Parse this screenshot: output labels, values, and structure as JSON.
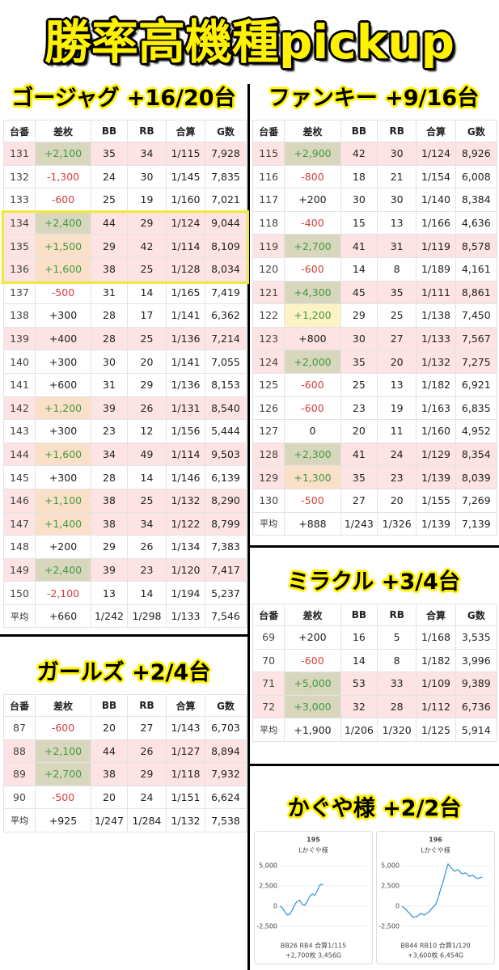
{
  "title": "勝率高機種pickup",
  "tables": [
    {
      "heading": "ゴージャグ +16/20台",
      "columns": [
        "台番",
        "差枚",
        "BB",
        "RB",
        "合算",
        "G数"
      ],
      "rows": [
        [
          "131",
          "+2,100",
          "35",
          "34",
          "1/115",
          "7,928"
        ],
        [
          "132",
          "-1,300",
          "24",
          "30",
          "1/145",
          "7,835"
        ],
        [
          "133",
          "-600",
          "25",
          "19",
          "1/160",
          "7,021"
        ],
        [
          "134",
          "+2,400",
          "44",
          "29",
          "1/124",
          "9,044"
        ],
        [
          "135",
          "+1,500",
          "29",
          "42",
          "1/114",
          "8,109"
        ],
        [
          "136",
          "+1,600",
          "38",
          "25",
          "1/128",
          "8,034"
        ],
        [
          "137",
          "-500",
          "31",
          "14",
          "1/165",
          "7,419"
        ],
        [
          "138",
          "+300",
          "28",
          "17",
          "1/141",
          "6,362"
        ],
        [
          "139",
          "+400",
          "28",
          "25",
          "1/136",
          "7,214"
        ],
        [
          "140",
          "+300",
          "30",
          "20",
          "1/141",
          "7,055"
        ],
        [
          "141",
          "+600",
          "31",
          "29",
          "1/136",
          "8,153"
        ],
        [
          "142",
          "+1,200",
          "39",
          "26",
          "1/131",
          "8,540"
        ],
        [
          "143",
          "+300",
          "23",
          "12",
          "1/156",
          "5,444"
        ],
        [
          "144",
          "+1,600",
          "34",
          "49",
          "1/114",
          "9,503"
        ],
        [
          "145",
          "+300",
          "28",
          "14",
          "1/146",
          "6,139"
        ],
        [
          "146",
          "+1,100",
          "38",
          "25",
          "1/132",
          "8,290"
        ],
        [
          "147",
          "+1,400",
          "38",
          "34",
          "1/122",
          "8,799"
        ],
        [
          "148",
          "+200",
          "29",
          "26",
          "1/134",
          "7,383"
        ],
        [
          "149",
          "+2,400",
          "39",
          "23",
          "1/120",
          "7,417"
        ],
        [
          "150",
          "-2,100",
          "13",
          "14",
          "1/194",
          "5,237"
        ]
      ],
      "average": [
        "平均",
        "+660",
        "1/242",
        "1/298",
        "1/133",
        "7,546"
      ],
      "row_bg": [
        "#fde3e3",
        null,
        null,
        "#fde3e3",
        "#fde3e3",
        "#fde3e3",
        null,
        null,
        "#fde3e3",
        null,
        null,
        "#fde3e3",
        null,
        "#fde3e3",
        null,
        "#fde3e3",
        "#fde3e3",
        null,
        "#fde3e3",
        null
      ],
      "diff_bg": [
        "#d9d6be",
        null,
        null,
        "#d9d6be",
        "#fbe0c9",
        "#fbe0c9",
        null,
        null,
        null,
        null,
        null,
        "#fbe0c9",
        null,
        "#fbe0c9",
        null,
        "#fbe0c9",
        "#fbe0c9",
        null,
        "#d9d6be",
        null
      ],
      "outline_rows": [
        3,
        4,
        5
      ],
      "outline_color": "#f3e83a"
    },
    {
      "heading": "ガールズ +2/4台",
      "columns": [
        "台番",
        "差枚",
        "BB",
        "RB",
        "合算",
        "G数"
      ],
      "rows": [
        [
          "87",
          "-600",
          "20",
          "27",
          "1/143",
          "6,703"
        ],
        [
          "88",
          "+2,100",
          "44",
          "26",
          "1/127",
          "8,894"
        ],
        [
          "89",
          "+2,700",
          "38",
          "29",
          "1/118",
          "7,932"
        ],
        [
          "90",
          "-500",
          "20",
          "24",
          "1/151",
          "6,624"
        ]
      ],
      "average": [
        "平均",
        "+925",
        "1/247",
        "1/284",
        "1/132",
        "7,538"
      ],
      "row_bg": [
        null,
        "#fde3e3",
        "#fde3e3",
        null
      ],
      "diff_bg": [
        null,
        "#d9d6be",
        "#d9d6be",
        null
      ]
    },
    {
      "heading": "ファンキー +9/16台",
      "columns": [
        "台番",
        "差枚",
        "BB",
        "RB",
        "合算",
        "G数"
      ],
      "rows": [
        [
          "115",
          "+2,900",
          "42",
          "30",
          "1/124",
          "8,926"
        ],
        [
          "116",
          "-800",
          "18",
          "21",
          "1/154",
          "6,008"
        ],
        [
          "117",
          "+200",
          "30",
          "30",
          "1/140",
          "8,384"
        ],
        [
          "118",
          "-400",
          "15",
          "13",
          "1/166",
          "4,636"
        ],
        [
          "119",
          "+2,700",
          "41",
          "31",
          "1/119",
          "8,578"
        ],
        [
          "120",
          "-600",
          "14",
          "8",
          "1/189",
          "4,161"
        ],
        [
          "121",
          "+4,300",
          "45",
          "35",
          "1/111",
          "8,861"
        ],
        [
          "122",
          "+1,200",
          "29",
          "25",
          "1/138",
          "7,450"
        ],
        [
          "123",
          "+800",
          "30",
          "27",
          "1/133",
          "7,567"
        ],
        [
          "124",
          "+2,000",
          "35",
          "20",
          "1/132",
          "7,275"
        ],
        [
          "125",
          "-600",
          "25",
          "13",
          "1/182",
          "6,921"
        ],
        [
          "126",
          "-600",
          "23",
          "19",
          "1/163",
          "6,835"
        ],
        [
          "127",
          "0",
          "20",
          "11",
          "1/160",
          "4,952"
        ],
        [
          "128",
          "+2,300",
          "41",
          "24",
          "1/129",
          "8,354"
        ],
        [
          "129",
          "+1,300",
          "35",
          "23",
          "1/139",
          "8,039"
        ],
        [
          "130",
          "-500",
          "27",
          "20",
          "1/155",
          "7,269"
        ]
      ],
      "average": [
        "平均",
        "+888",
        "1/243",
        "1/326",
        "1/139",
        "7,139"
      ],
      "row_bg": [
        "#fde3e3",
        null,
        null,
        null,
        "#fde3e3",
        null,
        "#fde3e3",
        null,
        "#fde3e3",
        "#fde3e3",
        null,
        null,
        null,
        "#fde3e3",
        "#fde3e3",
        null
      ],
      "diff_bg": [
        "#d9d6be",
        null,
        null,
        null,
        "#d9d6be",
        null,
        "#d9d6be",
        "#fdf3c6",
        null,
        "#d9d6be",
        null,
        null,
        null,
        "#d9d6be",
        "#fbe0c9",
        null
      ]
    },
    {
      "heading": "ミラクル +3/4台",
      "columns": [
        "台番",
        "差枚",
        "BB",
        "RB",
        "合算",
        "G数"
      ],
      "rows": [
        [
          "69",
          "+200",
          "16",
          "5",
          "1/168",
          "3,535"
        ],
        [
          "70",
          "-600",
          "14",
          "8",
          "1/182",
          "3,996"
        ],
        [
          "71",
          "+5,000",
          "53",
          "33",
          "1/109",
          "9,389"
        ],
        [
          "72",
          "+3,000",
          "32",
          "28",
          "1/112",
          "6,736"
        ]
      ],
      "average": [
        "平均",
        "+1,900",
        "1/206",
        "1/320",
        "1/125",
        "5,914"
      ],
      "row_bg": [
        null,
        null,
        "#fde3e3",
        "#fde3e3"
      ],
      "diff_bg": [
        null,
        null,
        "#d9d6be",
        "#d9d6be"
      ]
    }
  ],
  "kaguya": {
    "heading": "かぐや様 +2/2台",
    "charts": [
      {
        "type": "line",
        "title": "195",
        "subtitle": "Lかぐや様",
        "color": "#3d9bd6",
        "x": [
          0,
          200,
          400,
          600,
          800,
          1000,
          1200,
          1400,
          1600,
          1800,
          2000,
          2200,
          2400,
          2600,
          2800,
          3000,
          3200,
          3456
        ],
        "y": [
          0,
          -200,
          -700,
          -1100,
          -1000,
          -500,
          200,
          600,
          700,
          200,
          100,
          600,
          1200,
          1500,
          1300,
          1900,
          2600,
          2700
        ],
        "xlim": [
          0,
          7000
        ],
        "ylim": [
          -3500,
          6000
        ],
        "yticks": [
          {
            "value": 5000,
            "label": "5,000"
          },
          {
            "value": 2500,
            "label": "2,500"
          },
          0,
          {
            "value": -2500,
            "label": "-2,500"
          }
        ],
        "footer": [
          "BB26 RB4 合算1/115",
          "+2,700枚 3,456G"
        ]
      },
      {
        "type": "line",
        "title": "196",
        "subtitle": "Lかぐや様",
        "color": "#3d9bd6",
        "x": [
          0,
          300,
          600,
          900,
          1200,
          1500,
          1800,
          2100,
          2400,
          2700,
          2900,
          3100,
          3300,
          3500,
          3700,
          3900,
          4200,
          4500,
          4800,
          5100,
          5400,
          5700,
          6000,
          6454
        ],
        "y": [
          0,
          -400,
          -900,
          -1400,
          -1300,
          -900,
          -1100,
          -800,
          -300,
          200,
          1000,
          2100,
          3000,
          4200,
          5200,
          4800,
          4300,
          4500,
          4000,
          4100,
          3700,
          3800,
          3400,
          3600
        ],
        "xlim": [
          0,
          7000
        ],
        "ylim": [
          -3500,
          6000
        ],
        "yticks": [
          {
            "value": 5000,
            "label": "5,000"
          },
          {
            "value": 2500,
            "label": "2,500"
          },
          0,
          {
            "value": -2500,
            "label": "-2,500"
          }
        ],
        "footer": [
          "BB44 RB10 合算1/120",
          "+3,600枚 6,454G"
        ]
      }
    ]
  }
}
